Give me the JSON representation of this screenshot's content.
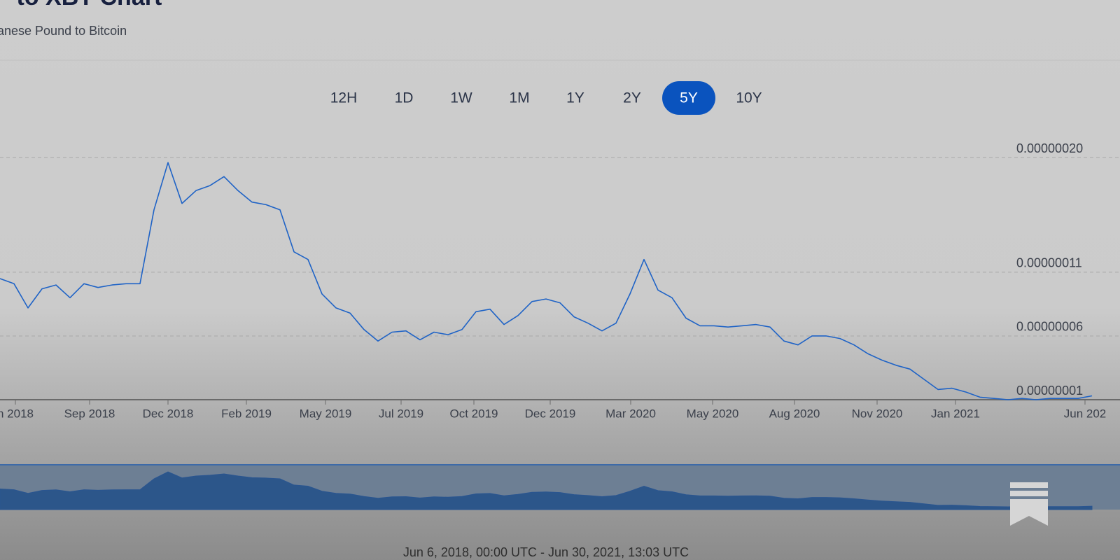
{
  "header": {
    "title": "P to XBT Chart",
    "subtitle": "anese Pound to Bitcoin"
  },
  "ranges": {
    "options": [
      "12H",
      "1D",
      "1W",
      "1M",
      "1Y",
      "2Y",
      "5Y",
      "10Y"
    ],
    "active_index": 6
  },
  "chart_data": {
    "type": "line",
    "color": "#1f63c6",
    "grid": true,
    "values": [
      1.05e-07,
      1.01e-07,
      8.2e-08,
      9.7e-08,
      1e-07,
      9e-08,
      1.01e-07,
      9.8e-08,
      1e-07,
      1.01e-07,
      1.01e-07,
      1.59e-07,
      1.96e-07,
      1.64e-07,
      1.74e-07,
      1.78e-07,
      1.85e-07,
      1.74e-07,
      1.65e-07,
      1.63e-07,
      1.59e-07,
      1.26e-07,
      1.2e-07,
      9.3e-08,
      8.2e-08,
      7.8e-08,
      6.5e-08,
      5.6e-08,
      6.3e-08,
      6.4e-08,
      5.7e-08,
      6.3e-08,
      6.1e-08,
      6.5e-08,
      7.9e-08,
      8.1e-08,
      6.9e-08,
      7.6e-08,
      8.7e-08,
      8.9e-08,
      8.6e-08,
      7.5e-08,
      7e-08,
      6.4e-08,
      7e-08,
      9.3e-08,
      1.2e-07,
      9.6e-08,
      9e-08,
      7.4e-08,
      6.8e-08,
      6.8e-08,
      6.7e-08,
      6.8e-08,
      6.9e-08,
      6.7e-08,
      5.6e-08,
      5.3e-08,
      6e-08,
      6e-08,
      5.8e-08,
      5.3e-08,
      4.6e-08,
      4.1e-08,
      3.7e-08,
      3.4e-08,
      2.6e-08,
      1.8e-08,
      1.9e-08,
      1.6e-08,
      1.2e-08,
      1.1e-08,
      1e-08,
      1.1e-08,
      1e-08,
      1.1e-08,
      1.1e-08,
      1.1e-08,
      1.3e-08
    ],
    "xlim": [
      0,
      78
    ],
    "xticks": [
      {
        "value": 1.1,
        "label": "n 2018"
      },
      {
        "value": 6.4,
        "label": "Sep 2018"
      },
      {
        "value": 12,
        "label": "Dec 2018"
      },
      {
        "value": 17.6,
        "label": "Feb 2019"
      },
      {
        "value": 23.25,
        "label": "May 2019"
      },
      {
        "value": 28.65,
        "label": "Jul 2019"
      },
      {
        "value": 33.85,
        "label": "Oct 2019"
      },
      {
        "value": 39.3,
        "label": "Dec 2019"
      },
      {
        "value": 45.05,
        "label": "Mar 2020"
      },
      {
        "value": 50.9,
        "label": "May 2020"
      },
      {
        "value": 56.75,
        "label": "Aug 2020"
      },
      {
        "value": 62.65,
        "label": "Nov 2020"
      },
      {
        "value": 68.25,
        "label": "Jan 2021"
      },
      {
        "value": 77.5,
        "label": "Jun 202"
      }
    ],
    "ylim": [
      1e-08,
      2e-07
    ],
    "yticks": [
      {
        "value": 2e-07,
        "label": "0.00000020"
      },
      {
        "value": 1.1e-07,
        "label": "0.00000011"
      },
      {
        "value": 6e-08,
        "label": "0.00000006"
      },
      {
        "value": 1e-08,
        "label": "0.00000001"
      }
    ]
  },
  "navigator": {
    "range_label": "Jun 6, 2018, 00:00 UTC - Jun 30, 2021, 13:03 UTC"
  }
}
